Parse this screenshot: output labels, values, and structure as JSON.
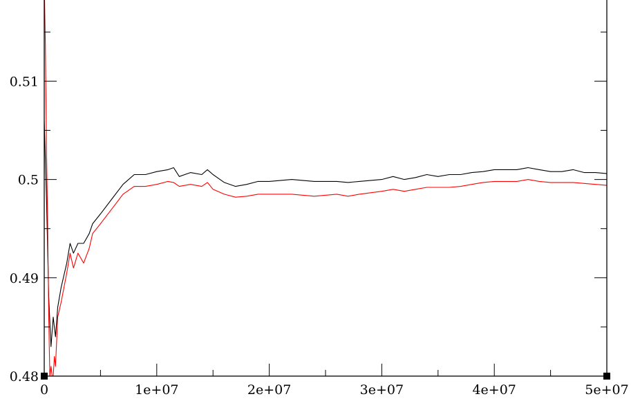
{
  "chart_data": {
    "type": "line",
    "title": "",
    "xlabel": "",
    "ylabel": "",
    "xlim": [
      0,
      50000000
    ],
    "ylim": [
      0.48,
      0.52
    ],
    "x_ticks": [
      0,
      10000000,
      20000000,
      30000000,
      40000000,
      50000000
    ],
    "x_tick_labels": [
      "0",
      "1e+07",
      "2e+07",
      "3e+07",
      "4e+07",
      "5e+07"
    ],
    "y_ticks": [
      0.48,
      0.49,
      0.5,
      0.51
    ],
    "y_tick_labels": [
      "0.48",
      "0.49",
      "0.5",
      "0.51"
    ],
    "grid": false,
    "legend": "none",
    "series": [
      {
        "color": "#000000",
        "x": [
          0,
          200000,
          400000,
          600000,
          800000,
          1000000,
          1200000,
          1500000,
          2000000,
          2300000,
          2600000,
          3000000,
          3500000,
          4000000,
          4300000,
          5000000,
          6000000,
          7000000,
          8000000,
          9000000,
          10000000,
          11000000,
          11500000,
          12000000,
          13000000,
          14000000,
          14500000,
          15000000,
          16000000,
          17000000,
          18000000,
          19000000,
          20000000,
          22000000,
          24000000,
          26000000,
          27000000,
          28000000,
          30000000,
          31000000,
          32000000,
          33000000,
          34000000,
          35000000,
          36000000,
          37000000,
          38000000,
          39000000,
          40000000,
          41000000,
          42000000,
          43000000,
          44000000,
          45000000,
          46000000,
          47000000,
          48000000,
          49000000,
          50000000
        ],
        "values": [
          0.506,
          0.498,
          0.488,
          0.483,
          0.486,
          0.484,
          0.487,
          0.489,
          0.4915,
          0.4935,
          0.4925,
          0.4935,
          0.4935,
          0.4945,
          0.4955,
          0.4965,
          0.498,
          0.4995,
          0.5005,
          0.5005,
          0.5008,
          0.501,
          0.5012,
          0.5003,
          0.5007,
          0.5005,
          0.501,
          0.5005,
          0.4997,
          0.4993,
          0.4995,
          0.4998,
          0.4998,
          0.5,
          0.4998,
          0.4998,
          0.4997,
          0.4998,
          0.5,
          0.5003,
          0.5,
          0.5002,
          0.5005,
          0.5003,
          0.5005,
          0.5005,
          0.5007,
          0.5008,
          0.501,
          0.501,
          0.501,
          0.5012,
          0.501,
          0.5008,
          0.5008,
          0.501,
          0.5007,
          0.5007,
          0.5006
        ]
      },
      {
        "color": "#ff0000",
        "x": [
          0,
          100000,
          200000,
          300000,
          400000,
          500000,
          600000,
          700000,
          800000,
          900000,
          1000000,
          1200000,
          1500000,
          2000000,
          2300000,
          2600000,
          3000000,
          3500000,
          4000000,
          4300000,
          5000000,
          6000000,
          7000000,
          8000000,
          9000000,
          10000000,
          11000000,
          11500000,
          12000000,
          13000000,
          14000000,
          14500000,
          15000000,
          16000000,
          17000000,
          18000000,
          19000000,
          20000000,
          22000000,
          24000000,
          26000000,
          27000000,
          28000000,
          30000000,
          31000000,
          32000000,
          33000000,
          34000000,
          35000000,
          36000000,
          37000000,
          38000000,
          39000000,
          40000000,
          41000000,
          42000000,
          43000000,
          44000000,
          45000000,
          46000000,
          47000000,
          48000000,
          49000000,
          50000000
        ],
        "values": [
          0.52,
          0.514,
          0.503,
          0.496,
          0.486,
          0.48,
          0.481,
          0.48,
          0.48,
          0.482,
          0.481,
          0.486,
          0.4875,
          0.4905,
          0.4925,
          0.491,
          0.4925,
          0.4915,
          0.493,
          0.4945,
          0.4955,
          0.497,
          0.4985,
          0.4993,
          0.4993,
          0.4995,
          0.4998,
          0.4997,
          0.4993,
          0.4995,
          0.4993,
          0.4997,
          0.499,
          0.4985,
          0.4982,
          0.4983,
          0.4985,
          0.4985,
          0.4985,
          0.4983,
          0.4985,
          0.4983,
          0.4985,
          0.4988,
          0.499,
          0.4988,
          0.499,
          0.4992,
          0.4992,
          0.4992,
          0.4993,
          0.4995,
          0.4997,
          0.4998,
          0.4998,
          0.4998,
          0.5,
          0.4998,
          0.4997,
          0.4997,
          0.4997,
          0.4996,
          0.4995,
          0.4994
        ]
      }
    ]
  }
}
